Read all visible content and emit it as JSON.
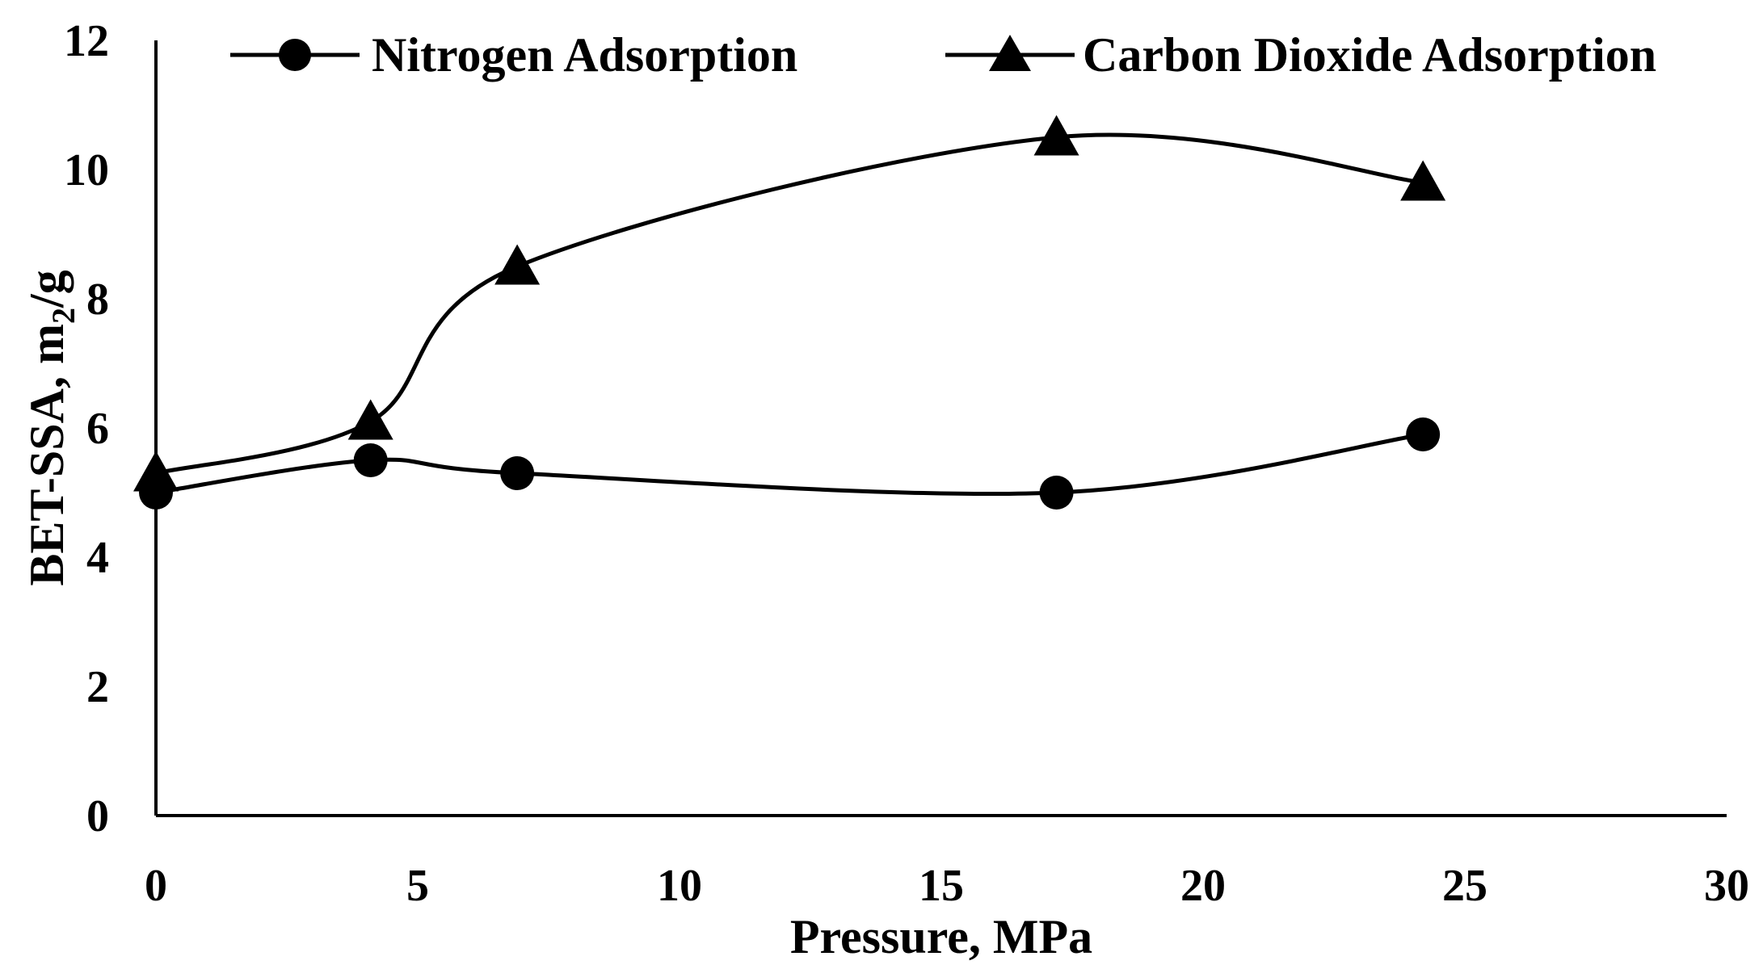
{
  "chart_data": {
    "type": "line",
    "smooth": true,
    "title": "",
    "xlabel": "Pressure, MPa",
    "ylabel": {
      "main": "BET-SSA, m",
      "subscript": "2",
      "suffix": "/g"
    },
    "xlim": [
      0,
      30
    ],
    "ylim": [
      0,
      12
    ],
    "x_ticks": [
      0,
      5,
      10,
      15,
      20,
      25,
      30
    ],
    "y_ticks": [
      0,
      2,
      4,
      6,
      8,
      10,
      12
    ],
    "grid": false,
    "legend_position": "top",
    "series": [
      {
        "name": "Nitrogen Adsorption",
        "marker": "circle",
        "x": [
          0,
          4.1,
          6.9,
          17.2,
          24.2
        ],
        "y": [
          5.0,
          5.5,
          5.3,
          5.0,
          5.9
        ]
      },
      {
        "name": "Carbon Dioxide Adsorption",
        "marker": "triangle",
        "x": [
          0,
          4.1,
          6.9,
          17.2,
          24.2
        ],
        "y": [
          5.3,
          6.1,
          8.5,
          10.5,
          9.8
        ]
      }
    ],
    "colors": {
      "line": "#000000",
      "marker": "#000000"
    }
  }
}
